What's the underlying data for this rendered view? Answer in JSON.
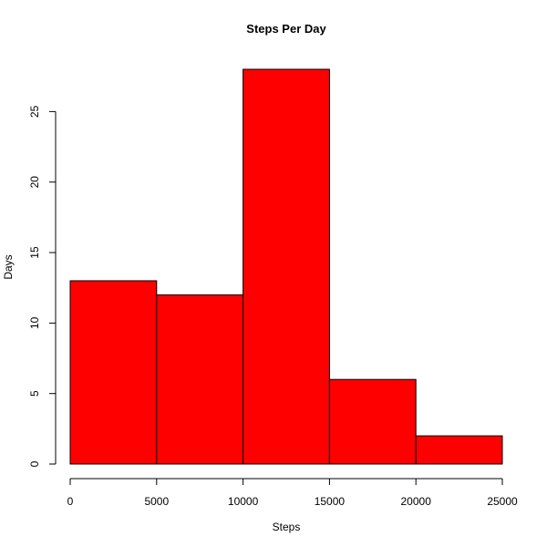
{
  "chart_data": {
    "type": "bar",
    "title": "Steps Per Day",
    "xlabel": "Steps",
    "ylabel": "Days",
    "bins": [
      {
        "start": 0,
        "end": 5000,
        "value": 13
      },
      {
        "start": 5000,
        "end": 10000,
        "value": 12
      },
      {
        "start": 10000,
        "end": 15000,
        "value": 28
      },
      {
        "start": 15000,
        "end": 20000,
        "value": 6
      },
      {
        "start": 20000,
        "end": 25000,
        "value": 2
      }
    ],
    "xlim": [
      0,
      25000
    ],
    "ylim": [
      0,
      28
    ],
    "xticks": [
      0,
      5000,
      10000,
      15000,
      20000,
      25000
    ],
    "yticks": [
      0,
      5,
      10,
      15,
      20,
      25
    ],
    "grid": false,
    "legend": "none",
    "bar_color": "#ff0000",
    "edge_color": "#000000"
  }
}
